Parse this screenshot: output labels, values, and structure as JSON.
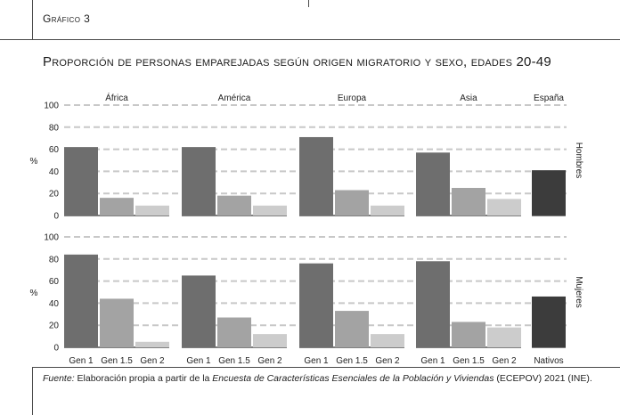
{
  "header": {
    "label": "Gráfico 3"
  },
  "title": "Proporción de personas emparejadas según origen migratorio y sexo, edades 20-49",
  "source": {
    "prefix": "Fuente:",
    "text1": " Elaboración propia a partir de la ",
    "italic": "Encuesta de Características Esenciales de la Población y Viviendas",
    "text2": " (ECEPOV) 2021 (INE)."
  },
  "chart_data": {
    "type": "bar",
    "ylabel": "%",
    "ylim": [
      0,
      100
    ],
    "yticks": [
      "0",
      "20",
      "40",
      "60",
      "80",
      "100"
    ],
    "grid": "dashed horizontal",
    "origins": [
      "África",
      "América",
      "Europa",
      "Asia",
      "España"
    ],
    "generations": [
      "Gen 1",
      "Gen 1.5",
      "Gen 2"
    ],
    "natives_label": "Nativos",
    "rows": [
      {
        "sex": "Hombres",
        "groups": [
          {
            "origin": "África",
            "values": [
              62,
              16,
              9
            ]
          },
          {
            "origin": "América",
            "values": [
              62,
              18,
              9
            ]
          },
          {
            "origin": "Europa",
            "values": [
              71,
              23,
              9
            ]
          },
          {
            "origin": "Asia",
            "values": [
              57,
              25,
              15
            ]
          },
          {
            "origin": "España",
            "values": [
              41
            ]
          }
        ]
      },
      {
        "sex": "Mujeres",
        "groups": [
          {
            "origin": "África",
            "values": [
              84,
              44,
              5
            ]
          },
          {
            "origin": "América",
            "values": [
              65,
              27,
              12
            ]
          },
          {
            "origin": "Europa",
            "values": [
              76,
              33,
              12
            ]
          },
          {
            "origin": "Asia",
            "values": [
              78,
              23,
              18
            ]
          },
          {
            "origin": "España",
            "values": [
              46
            ]
          }
        ]
      }
    ],
    "colors": {
      "gen1": "#6e6e6e",
      "gen15": "#a3a3a3",
      "gen2": "#cccccc",
      "natives": "#3c3c3c",
      "grid": "#c8c8c8"
    }
  }
}
